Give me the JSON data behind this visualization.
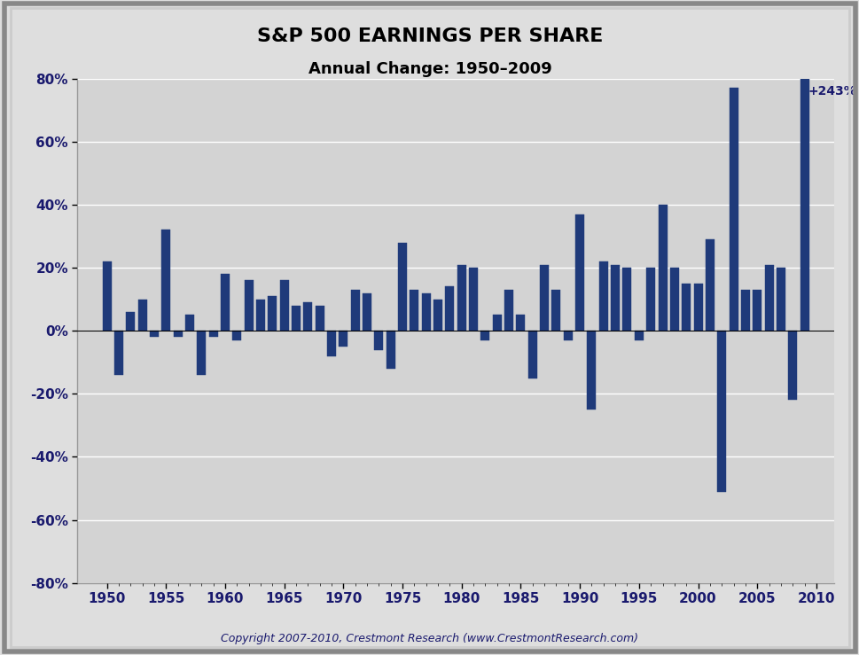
{
  "title": "S&P 500 EARNINGS PER SHARE",
  "subtitle": "Annual Change: 1950–2009",
  "annotation": "+243%",
  "copyright": "Copyright 2007-2010, Crestmont Research (www.CrestmontResearch.com)",
  "bar_color": "#1F3A7A",
  "background_color": "#DEDEDE",
  "plot_bg_color": "#D3D3D3",
  "years": [
    1950,
    1951,
    1952,
    1953,
    1954,
    1955,
    1956,
    1957,
    1958,
    1959,
    1960,
    1961,
    1962,
    1963,
    1964,
    1965,
    1966,
    1967,
    1968,
    1969,
    1970,
    1971,
    1972,
    1973,
    1974,
    1975,
    1976,
    1977,
    1978,
    1979,
    1980,
    1981,
    1982,
    1983,
    1984,
    1985,
    1986,
    1987,
    1988,
    1989,
    1990,
    1991,
    1992,
    1993,
    1994,
    1995,
    1996,
    1997,
    1998,
    1999,
    2000,
    2001,
    2002,
    2003,
    2004,
    2005,
    2006,
    2007,
    2008,
    2009
  ],
  "values": [
    22,
    -14,
    6,
    10,
    -2,
    32,
    -2,
    5,
    -14,
    -2,
    18,
    -3,
    16,
    10,
    11,
    16,
    8,
    9,
    8,
    -8,
    -5,
    13,
    12,
    -6,
    -12,
    28,
    13,
    12,
    10,
    14,
    21,
    20,
    -3,
    5,
    13,
    5,
    -15,
    21,
    13,
    -3,
    37,
    -25,
    22,
    21,
    20,
    -3,
    20,
    40,
    20,
    15,
    15,
    29,
    -51,
    77,
    13,
    13,
    21,
    20,
    -22,
    243
  ],
  "ylim": [
    -80,
    80
  ],
  "xticks": [
    1950,
    1955,
    1960,
    1965,
    1970,
    1975,
    1980,
    1985,
    1990,
    1995,
    2000,
    2005,
    2010
  ],
  "yticks": [
    -80,
    -60,
    -40,
    -20,
    0,
    20,
    40,
    60,
    80
  ],
  "bar_width": 0.75,
  "xlim": [
    1947.5,
    2011.5
  ],
  "title_fontsize": 16,
  "subtitle_fontsize": 13,
  "tick_fontsize": 11,
  "annotation_fontsize": 10,
  "copyright_fontsize": 9,
  "grid_color": "#FFFFFF",
  "border_color": "#AAAAAA",
  "text_color": "#1a1a6e"
}
